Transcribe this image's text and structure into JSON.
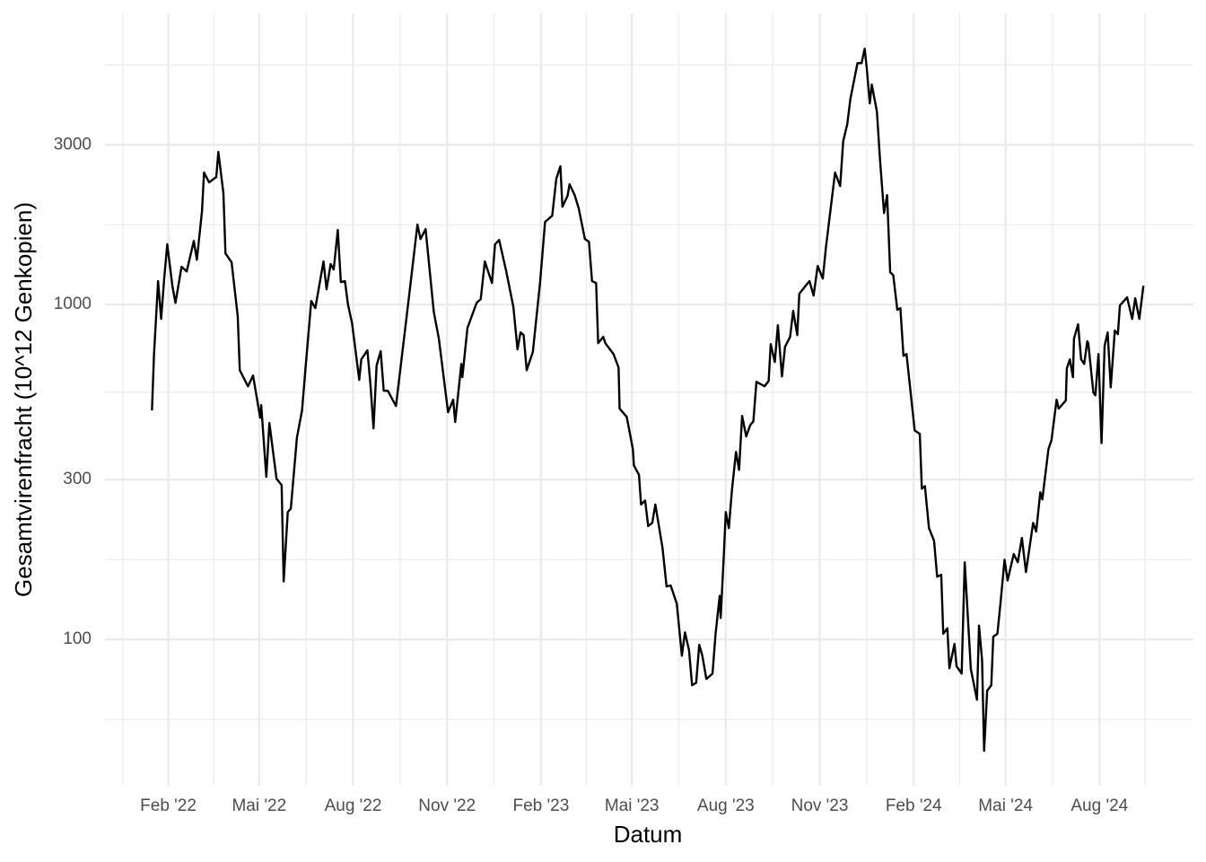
{
  "chart_data": {
    "type": "line",
    "xlabel": "Datum",
    "ylabel": "Gesamtvirenfracht (10^12 Genkopien)",
    "color": "#000000",
    "log_y": true,
    "grid": true,
    "xlim": [
      "2021-12-01",
      "2024-11-01"
    ],
    "ylim": [
      36.6,
      7400
    ],
    "xticks": [
      {
        "value": "2022-02-01",
        "label": "Feb '22"
      },
      {
        "value": "2022-05-01",
        "label": "Mai '22"
      },
      {
        "value": "2022-08-01",
        "label": "Aug '22"
      },
      {
        "value": "2022-11-01",
        "label": "Nov '22"
      },
      {
        "value": "2023-02-01",
        "label": "Feb '23"
      },
      {
        "value": "2023-05-01",
        "label": "Mai '23"
      },
      {
        "value": "2023-08-01",
        "label": "Aug '23"
      },
      {
        "value": "2023-11-01",
        "label": "Nov '23"
      },
      {
        "value": "2024-02-01",
        "label": "Feb '24"
      },
      {
        "value": "2024-05-01",
        "label": "Mai '24"
      },
      {
        "value": "2024-08-01",
        "label": "Aug '24"
      }
    ],
    "yticks": [
      100,
      300,
      1000,
      3000
    ],
    "x": [
      "2022-01-16",
      "2022-01-18",
      "2022-01-22",
      "2022-01-25",
      "2022-01-28",
      "2022-01-31",
      "2022-02-05",
      "2022-02-08",
      "2022-02-14",
      "2022-02-19",
      "2022-02-26",
      "2022-03-01",
      "2022-03-06",
      "2022-03-08",
      "2022-03-13",
      "2022-03-20",
      "2022-03-22",
      "2022-03-27",
      "2022-03-29",
      "2022-04-04",
      "2022-04-10",
      "2022-04-12",
      "2022-04-20",
      "2022-04-25",
      "2022-05-02",
      "2022-05-03",
      "2022-05-08",
      "2022-05-11",
      "2022-05-18",
      "2022-05-23",
      "2022-05-25",
      "2022-05-29",
      "2022-06-01",
      "2022-06-07",
      "2022-06-12",
      "2022-06-15",
      "2022-06-21",
      "2022-06-25",
      "2022-07-03",
      "2022-07-06",
      "2022-07-10",
      "2022-07-13",
      "2022-07-17",
      "2022-07-20",
      "2022-07-24",
      "2022-07-27",
      "2022-07-31",
      "2022-08-07",
      "2022-08-09",
      "2022-08-15",
      "2022-08-18",
      "2022-08-21",
      "2022-08-24",
      "2022-08-28",
      "2022-08-31",
      "2022-09-04",
      "2022-09-12",
      "2022-09-19",
      "2022-09-26",
      "2022-10-03",
      "2022-10-06",
      "2022-10-11",
      "2022-10-19",
      "2022-10-24",
      "2022-11-02",
      "2022-11-07",
      "2022-11-09",
      "2022-11-15",
      "2022-11-16",
      "2022-11-21",
      "2022-11-30",
      "2022-12-04",
      "2022-12-08",
      "2022-12-15",
      "2022-12-18",
      "2022-12-22",
      "2022-12-29",
      "2023-01-05",
      "2023-01-09",
      "2023-01-12",
      "2023-01-15",
      "2023-01-18",
      "2023-01-24",
      "2023-01-31",
      "2023-02-05",
      "2023-02-12",
      "2023-02-16",
      "2023-02-20",
      "2023-02-22",
      "2023-02-27",
      "2023-03-01",
      "2023-03-06",
      "2023-03-10",
      "2023-03-16",
      "2023-03-20",
      "2023-03-23",
      "2023-03-27",
      "2023-03-29",
      "2023-04-03",
      "2023-04-05",
      "2023-04-13",
      "2023-04-18",
      "2023-04-19",
      "2023-04-26",
      "2023-05-02",
      "2023-05-03",
      "2023-05-08",
      "2023-05-10",
      "2023-05-14",
      "2023-05-17",
      "2023-05-21",
      "2023-05-24",
      "2023-05-31",
      "2023-06-04",
      "2023-06-08",
      "2023-06-14",
      "2023-06-19",
      "2023-06-22",
      "2023-06-26",
      "2023-06-29",
      "2023-07-03",
      "2023-07-06",
      "2023-07-09",
      "2023-07-13",
      "2023-07-19",
      "2023-07-22",
      "2023-07-26",
      "2023-07-27",
      "2023-07-30",
      "2023-08-01",
      "2023-08-04",
      "2023-08-07",
      "2023-08-11",
      "2023-08-14",
      "2023-08-17",
      "2023-08-21",
      "2023-08-25",
      "2023-08-28",
      "2023-08-31",
      "2023-09-08",
      "2023-09-12",
      "2023-09-14",
      "2023-09-18",
      "2023-09-21",
      "2023-09-25",
      "2023-09-28",
      "2023-10-03",
      "2023-10-06",
      "2023-10-10",
      "2023-10-12",
      "2023-10-19",
      "2023-10-22",
      "2023-10-26",
      "2023-10-30",
      "2023-11-04",
      "2023-11-07",
      "2023-11-13",
      "2023-11-16",
      "2023-11-21",
      "2023-11-24",
      "2023-11-28",
      "2023-12-01",
      "2023-12-08",
      "2023-12-12",
      "2023-12-15",
      "2023-12-17",
      "2023-12-20",
      "2023-12-22",
      "2023-12-27",
      "2023-12-30",
      "2024-01-03",
      "2024-01-06",
      "2024-01-09",
      "2024-01-12",
      "2024-01-16",
      "2024-01-19",
      "2024-01-22",
      "2024-01-25",
      "2024-02-02",
      "2024-02-07",
      "2024-02-09",
      "2024-02-12",
      "2024-02-16",
      "2024-02-21",
      "2024-02-24",
      "2024-02-28",
      "2024-03-01",
      "2024-03-05",
      "2024-03-07",
      "2024-03-12",
      "2024-03-14",
      "2024-03-19",
      "2024-03-22",
      "2024-03-28",
      "2024-04-03",
      "2024-04-05",
      "2024-04-08",
      "2024-04-10",
      "2024-04-13",
      "2024-04-17",
      "2024-04-19",
      "2024-04-23",
      "2024-04-26",
      "2024-04-30",
      "2024-05-03",
      "2024-05-09",
      "2024-05-13",
      "2024-05-17",
      "2024-05-21",
      "2024-05-28",
      "2024-05-31",
      "2024-06-04",
      "2024-06-06",
      "2024-06-12",
      "2024-06-15",
      "2024-06-20",
      "2024-06-22",
      "2024-06-29",
      "2024-06-30",
      "2024-07-03",
      "2024-07-06",
      "2024-07-07",
      "2024-07-11",
      "2024-07-14",
      "2024-07-17",
      "2024-07-20",
      "2024-07-21",
      "2024-07-26",
      "2024-07-28",
      "2024-07-31",
      "2024-08-03",
      "2024-08-06",
      "2024-08-09",
      "2024-08-12",
      "2024-08-16",
      "2024-08-19",
      "2024-08-21",
      "2024-08-28",
      "2024-09-02",
      "2024-09-05",
      "2024-09-09",
      "2024-09-13"
    ],
    "values": [
      483,
      708,
      1175,
      906,
      1196,
      1513,
      1138,
      1012,
      1297,
      1256,
      1549,
      1361,
      1900,
      2478,
      2317,
      2404,
      2856,
      2148,
      1422,
      1337,
      923,
      637,
      570,
      614,
      459,
      501,
      306,
      443,
      302,
      289,
      149,
      240,
      246,
      401,
      483,
      625,
      1025,
      976,
      1345,
      1111,
      1321,
      1273,
      1670,
      1167,
      1175,
      1000,
      879,
      596,
      686,
      730,
      577,
      427,
      657,
      726,
      553,
      553,
      498,
      753,
      1138,
      1733,
      1570,
      1680,
      952,
      791,
      477,
      520,
      446,
      665,
      607,
      852,
      1012,
      1038,
      1345,
      1160,
      1513,
      1560,
      1256,
      982,
      735,
      826,
      811,
      637,
      721,
      1153,
      1765,
      1842,
      2373,
      2588,
      1959,
      2110,
      2287,
      2123,
      1936,
      1570,
      1540,
      1175,
      1160,
      767,
      801,
      767,
      712,
      649,
      489,
      462,
      370,
      331,
      310,
      253,
      260,
      218,
      223,
      253,
      188,
      144,
      145,
      128,
      89.5,
      105,
      92.9,
      73.0,
      74.3,
      96.4,
      89.5,
      76.2,
      79.1,
      104,
      135,
      116,
      177,
      240,
      215,
      279,
      363,
      321,
      465,
      404,
      437,
      448,
      588,
      570,
      592,
      762,
      674,
      868,
      610,
      748,
      801,
      958,
      811,
      1077,
      1146,
      1175,
      1064,
      1304,
      1196,
      1475,
      2084,
      2478,
      2259,
      3075,
      3459,
      4110,
      5260,
      5260,
      5808,
      5104,
      3987,
      4538,
      3770,
      2717,
      1876,
      2123,
      1249,
      1225,
      964,
      976,
      703,
      712,
      421,
      411,
      282,
      287,
      215,
      197,
      154,
      156,
      104,
      108,
      82.1,
      97.0,
      83.2,
      79.1,
      170,
      81.6,
      66.1,
      110,
      86.7,
      46.5,
      70.3,
      73.0,
      102,
      104,
      128,
      173,
      150,
      180,
      170,
      201,
      159,
      223,
      210,
      275,
      262,
      370,
      394,
      520,
      489,
      517,
      645,
      686,
      607,
      791,
      873,
      686,
      665,
      777,
      767,
      546,
      536,
      712,
      386,
      753,
      826,
      566,
      836,
      816,
      994,
      1051,
      906,
      1044,
      906,
      1138
    ]
  }
}
